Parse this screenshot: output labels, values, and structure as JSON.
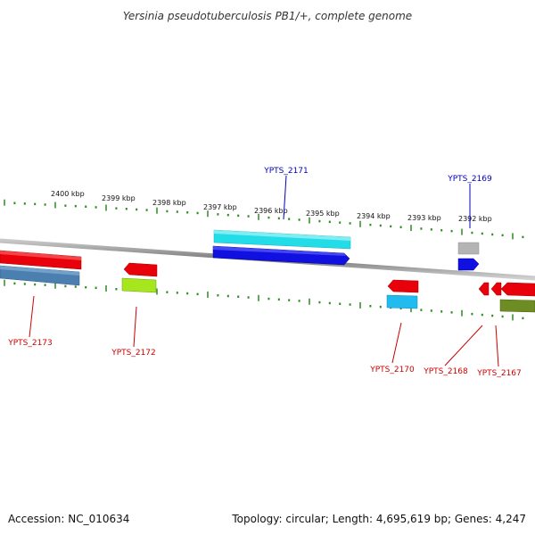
{
  "title": "Yersinia pseudotuberculosis PB1/+, complete genome",
  "footer": {
    "accession": "Accession: NC_010634",
    "summary": "Topology: circular; Length: 4,695,619 bp; Genes: 4,247"
  },
  "scale_labels": [
    "2400 kbp",
    "2399 kbp",
    "2398 kbp",
    "2397 kbp",
    "2396 kbp",
    "2395 kbp",
    "2394 kbp",
    "2393 kbp",
    "2392 kbp"
  ],
  "gene_labels": {
    "ypts_2171": "YPTS_2171",
    "ypts_2169": "YPTS_2169",
    "ypts_2173": "YPTS_2173",
    "ypts_2172": "YPTS_2172",
    "ypts_2170": "YPTS_2170",
    "ypts_2168": "YPTS_2168",
    "ypts_2167": "YPTS_2167"
  },
  "colors": {
    "backbone": "#8a8a8a",
    "tick": "#2e8b22",
    "red": "#e8000a",
    "blue": "#1010e0",
    "cyan": "#22dde8",
    "steel": "#4a7fb0",
    "lime": "#a6e61c",
    "sky": "#22bbf0",
    "gray": "#b4b4b4",
    "olive": "#6e8c24",
    "label_red": "#cc0000",
    "label_blue": "#0000bb"
  }
}
